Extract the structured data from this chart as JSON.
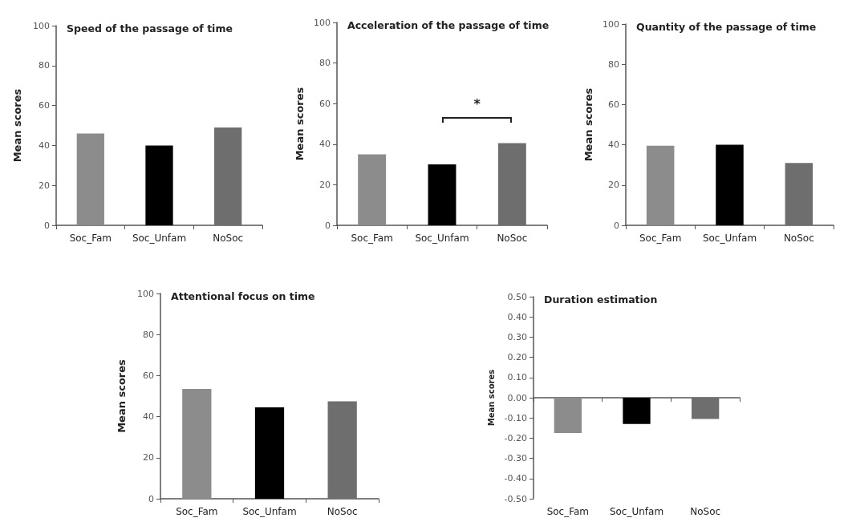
{
  "chart_data": [
    {
      "type": "bar",
      "title": "Speed of the passage of time",
      "ylabel": "Mean scores",
      "categories": [
        "Soc_Fam",
        "Soc_Unfam",
        "NoSoc"
      ],
      "values": [
        46,
        40,
        49
      ],
      "colors": [
        "#8c8c8c",
        "#000000",
        "#6e6e6e"
      ],
      "ylim": [
        0,
        100
      ],
      "yticks": [
        0,
        20,
        40,
        60,
        80,
        100
      ]
    },
    {
      "type": "bar",
      "title": "Acceleration of the passage of time",
      "ylabel": "Mean scores",
      "categories": [
        "Soc_Fam",
        "Soc_Unfam",
        "NoSoc"
      ],
      "values": [
        35,
        30,
        40.5
      ],
      "colors": [
        "#8c8c8c",
        "#000000",
        "#6e6e6e"
      ],
      "ylim": [
        0,
        100
      ],
      "yticks": [
        0,
        20,
        40,
        60,
        80,
        100
      ],
      "annotations": [
        "*"
      ]
    },
    {
      "type": "bar",
      "title": "Quantity of the passage of time",
      "ylabel": "Mean scores",
      "categories": [
        "Soc_Fam",
        "Soc_Unfam",
        "NoSoc"
      ],
      "values": [
        39.5,
        40,
        31
      ],
      "colors": [
        "#8c8c8c",
        "#000000",
        "#6e6e6e"
      ],
      "ylim": [
        0,
        100
      ],
      "yticks": [
        0,
        20,
        40,
        60,
        80,
        100
      ]
    },
    {
      "type": "bar",
      "title": "Attentional focus on time",
      "ylabel": "Mean scores",
      "categories": [
        "Soc_Fam",
        "Soc_Unfam",
        "NoSoc"
      ],
      "values": [
        53.5,
        44.5,
        47.5
      ],
      "colors": [
        "#8c8c8c",
        "#000000",
        "#6e6e6e"
      ],
      "ylim": [
        0,
        100
      ],
      "yticks": [
        0,
        20,
        40,
        60,
        80,
        100
      ]
    },
    {
      "type": "bar",
      "title": "Duration estimation",
      "ylabel": "Mean scores",
      "categories": [
        "Soc_Fam",
        "Soc_Unfam",
        "NoSoc"
      ],
      "values": [
        -0.175,
        -0.13,
        -0.105
      ],
      "colors": [
        "#8c8c8c",
        "#000000",
        "#6e6e6e"
      ],
      "ylim": [
        -0.5,
        0.5
      ],
      "yticks": [
        {
          "value": -0.5,
          "label": "-0.50"
        },
        {
          "value": -0.4,
          "label": "-0.40"
        },
        {
          "value": -0.3,
          "label": "-0.30"
        },
        {
          "value": -0.2,
          "label": "-0.20"
        },
        {
          "value": -0.1,
          "label": "-0.10"
        },
        {
          "value": 0,
          "label": "0.00"
        },
        {
          "value": 0.1,
          "label": "0.10"
        },
        {
          "value": 0.2,
          "label": "0.20"
        },
        {
          "value": 0.3,
          "label": "0.30"
        },
        {
          "value": 0.4,
          "label": "0.40"
        },
        {
          "value": 0.5,
          "label": "0.50"
        }
      ]
    }
  ]
}
